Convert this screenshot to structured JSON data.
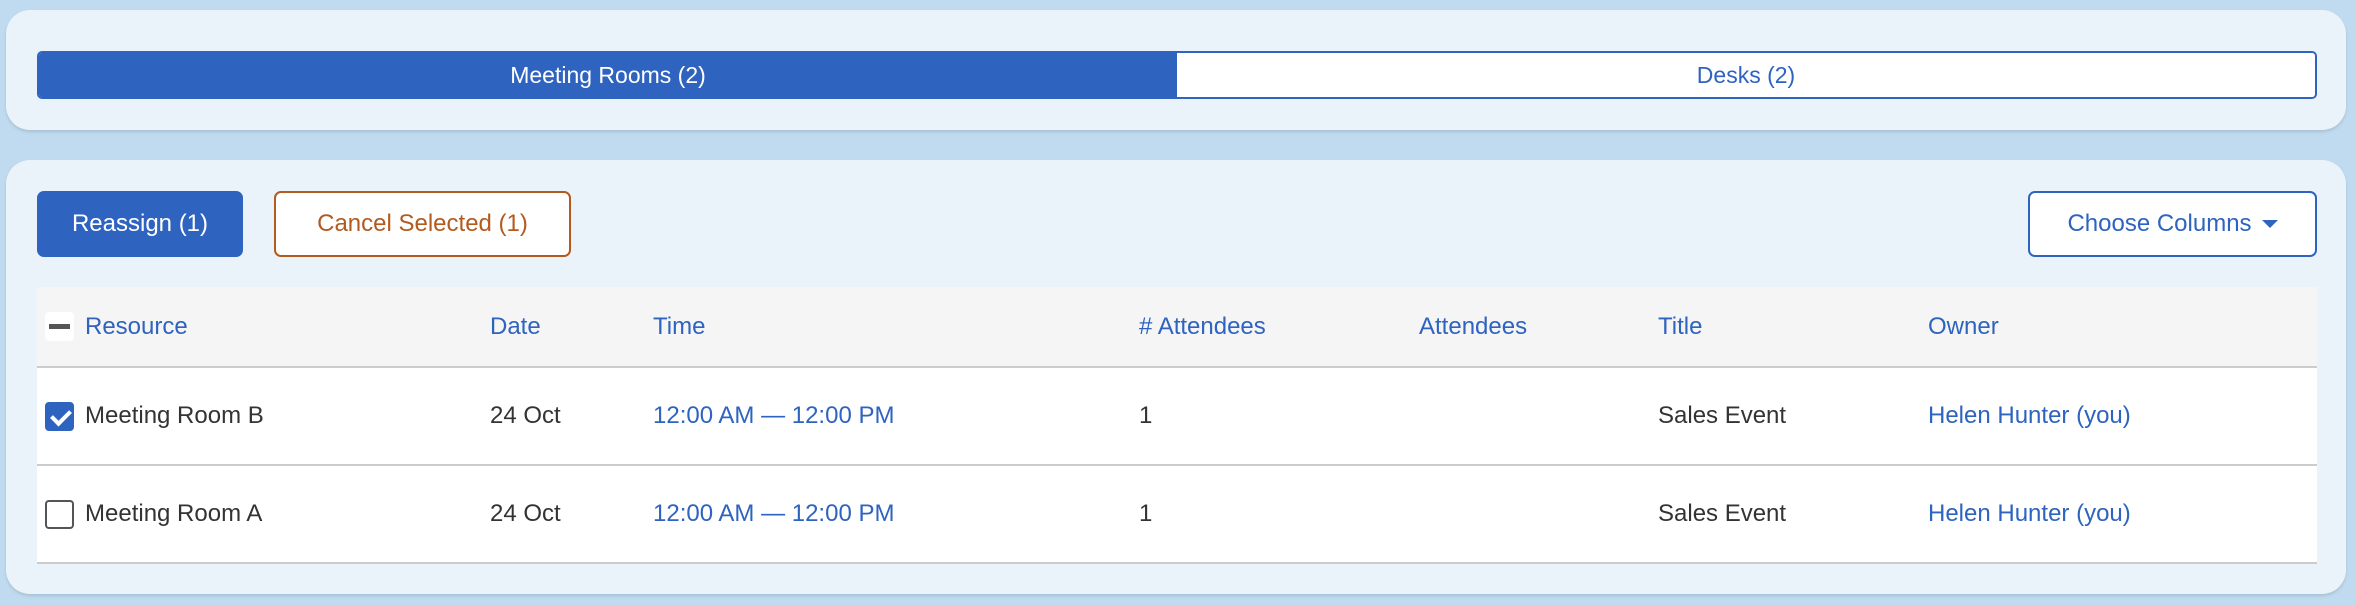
{
  "tabs": [
    {
      "label": "Meeting Rooms (2)",
      "active": true
    },
    {
      "label": "Desks (2)",
      "active": false
    }
  ],
  "toolbar": {
    "reassign": "Reassign (1)",
    "cancel": "Cancel Selected (1)",
    "choose_columns": "Choose Columns"
  },
  "colors": {
    "primary": "#2e63bf",
    "danger": "#b35a1f"
  },
  "table": {
    "headers": [
      "Resource",
      "Date",
      "Time",
      "# Attendees",
      "Attendees",
      "Title",
      "Owner"
    ],
    "rows": [
      {
        "checked": true,
        "resource": "Meeting Room B",
        "date": "24 Oct",
        "time": "12:00 AM — 12:00 PM",
        "num": "1",
        "attendees": "",
        "title": "Sales Event",
        "owner": "Helen Hunter (you)"
      },
      {
        "checked": false,
        "resource": "Meeting Room A",
        "date": "24 Oct",
        "time": "12:00 AM — 12:00 PM",
        "num": "1",
        "attendees": "",
        "title": "Sales Event",
        "owner": "Helen Hunter (you)"
      }
    ]
  }
}
